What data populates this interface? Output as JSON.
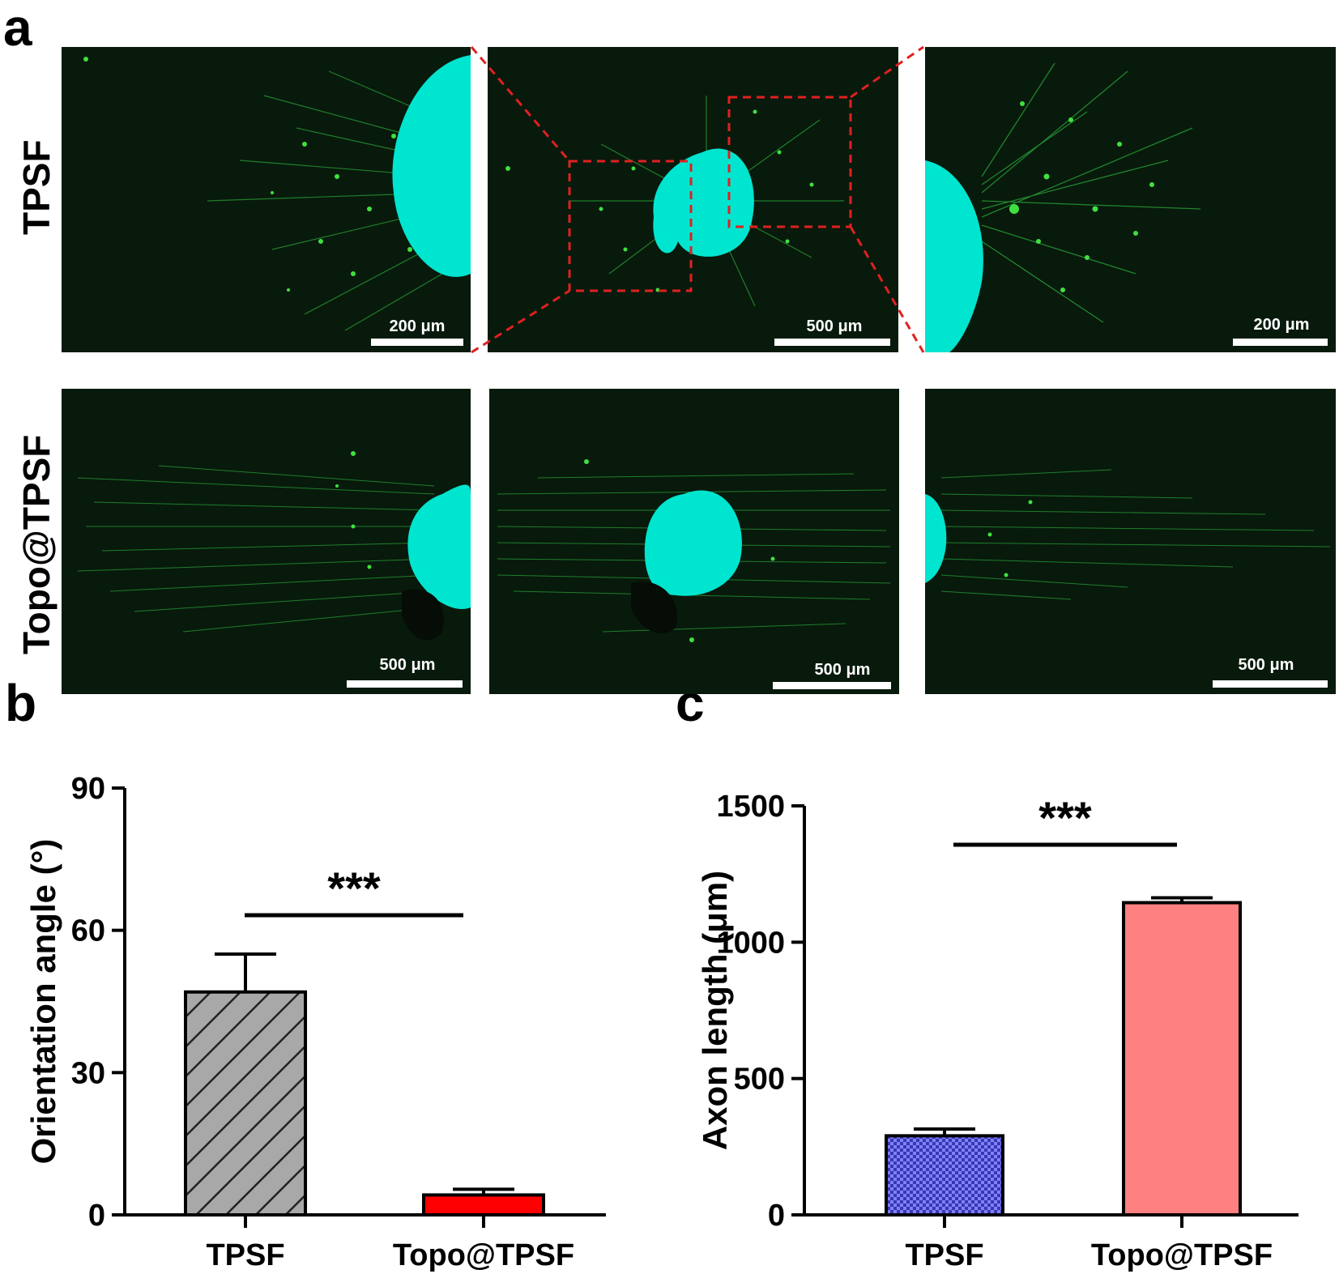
{
  "panel_a": {
    "letter": "a",
    "row_labels": [
      "TPSF",
      "Topo@TPSF"
    ],
    "scale_labels": {
      "r1c1": "200 μm",
      "r1c2": "500 μm",
      "r1c3": "200 μm",
      "r2c1": "500 μm",
      "r2c2": "500 μm",
      "r2c3": "500 μm"
    },
    "colors": {
      "background": "#081a0c",
      "neurite": "#33e033",
      "explant": "#00e5d0",
      "inset_box": "#e02020"
    }
  },
  "chart_data": [
    {
      "type": "bar",
      "panel": "b",
      "categories": [
        "TPSF",
        "Topo@TPSF"
      ],
      "values": [
        47,
        4.2
      ],
      "errors": [
        8,
        1.2
      ],
      "ylabel": "Orientation angle (°)",
      "ylim": [
        0,
        90
      ],
      "yticks": [
        "0",
        "30",
        "60",
        "90"
      ],
      "significance": "***",
      "fills": [
        "#a8a8a8",
        "#ff0000"
      ],
      "patterns": [
        "diagonal-hatch",
        "solid"
      ]
    },
    {
      "type": "bar",
      "panel": "c",
      "categories": [
        "TPSF",
        "Topo@TPSF"
      ],
      "values": [
        290,
        1145
      ],
      "errors": [
        25,
        18
      ],
      "ylabel": "Axon length (μm)",
      "ylim": [
        0,
        1500
      ],
      "yticks": [
        "0",
        "500",
        "1000",
        "1500"
      ],
      "significance": "***",
      "fills": [
        "#8080ff",
        "#ff8080"
      ],
      "patterns": [
        "checker",
        "solid"
      ]
    }
  ]
}
